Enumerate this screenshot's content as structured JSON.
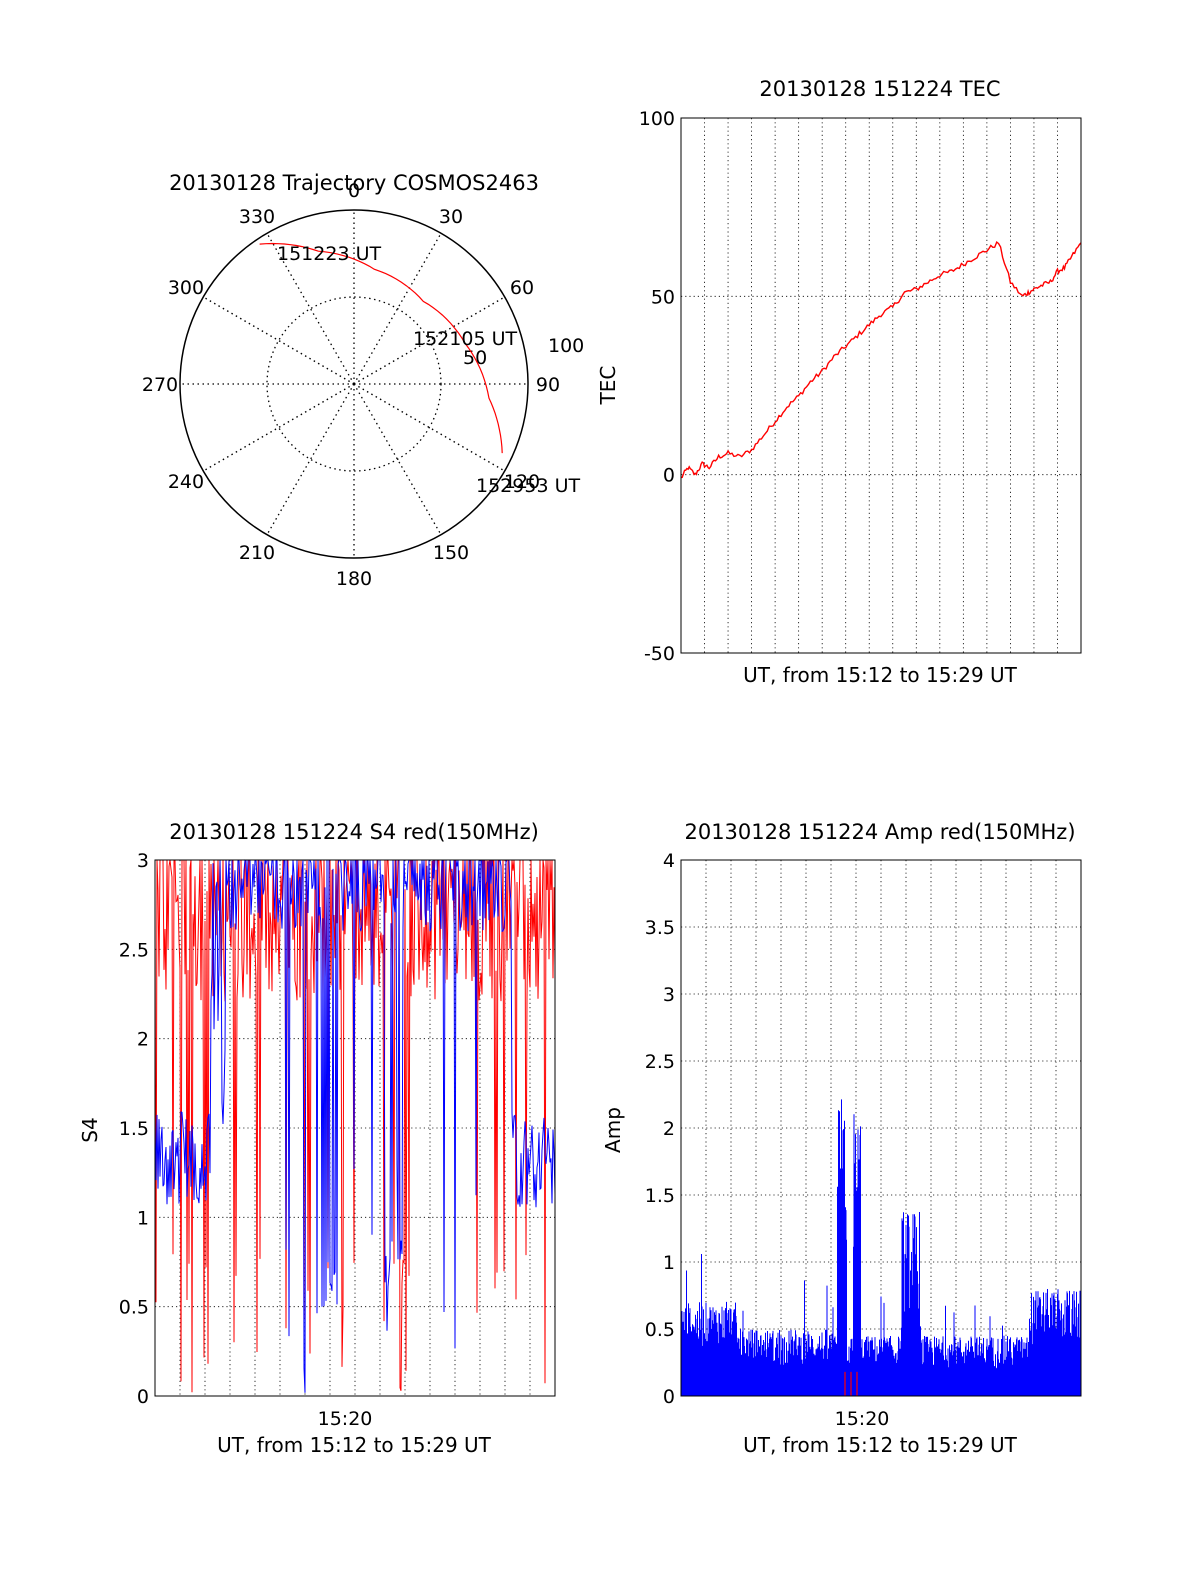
{
  "chart_data": [
    {
      "type": "polar",
      "title": "20130128 Trajectory COSMOS2463",
      "angle_labels": [
        "0",
        "30",
        "60",
        "90",
        "120",
        "150",
        "180",
        "210",
        "240",
        "270",
        "300",
        "330"
      ],
      "radial_labels": [
        "50",
        "100"
      ],
      "rlim": [
        0,
        100
      ],
      "grid": true,
      "series": [
        {
          "color": "#ff0000",
          "points": [
            {
              "azimuth": 326,
              "elevation_ring": 97
            },
            {
              "azimuth": 345,
              "elevation_ring": 79
            },
            {
              "azimuth": 10,
              "elevation_ring": 67
            },
            {
              "azimuth": 40,
              "elevation_ring": 62
            },
            {
              "azimuth": 70,
              "elevation_ring": 68
            },
            {
              "azimuth": 96,
              "elevation_ring": 78
            },
            {
              "azimuth": 115,
              "elevation_ring": 94
            }
          ]
        }
      ],
      "annotations": [
        "151223 UT",
        "152105 UT",
        "152953 UT"
      ]
    },
    {
      "type": "line",
      "title": "20130128 151224 TEC",
      "xlabel": "UT, from 15:12 to 15:29 UT",
      "ylabel": "TEC",
      "xlim": [
        0,
        17
      ],
      "ylim": [
        -50,
        100
      ],
      "yticks": [
        "-50",
        "0",
        "50",
        "100"
      ],
      "grid": true,
      "series": [
        {
          "color": "#ff0000",
          "x": [
            0,
            0.3,
            0.6,
            0.9,
            1.2,
            1.6,
            2,
            2.5,
            3,
            3.5,
            4,
            4.5,
            5,
            5.5,
            6,
            6.5,
            7,
            7.5,
            8,
            8.5,
            9,
            9.5,
            10,
            10.5,
            11,
            11.5,
            12,
            12.5,
            13,
            13.5,
            14,
            14.5,
            14.75,
            15,
            15.3,
            15.7,
            16,
            16.3,
            16.6,
            17
          ],
          "y": [
            -1,
            2,
            0,
            3,
            2,
            5,
            6,
            5,
            7,
            11,
            15,
            19,
            22,
            26,
            29,
            33,
            36,
            39,
            42,
            45,
            47,
            51,
            52,
            54,
            56,
            57,
            59,
            61,
            63,
            65,
            54,
            50,
            51,
            52,
            53,
            54,
            57,
            58,
            61,
            65
          ]
        }
      ]
    },
    {
      "type": "line",
      "title": "20130128 151224 S4 red(150MHz)",
      "xlabel": "UT, from 15:12 to 15:29 UT",
      "ylabel": "S4",
      "xlim": [
        0,
        17
      ],
      "ylim": [
        0,
        3
      ],
      "xticks": [
        {
          "value": 7.6,
          "label": "15:20"
        }
      ],
      "yticks": [
        "0",
        "0.5",
        "1",
        "1.5",
        "2",
        "2.5",
        "3"
      ],
      "grid": true,
      "series": [
        {
          "color": "#ff0000",
          "description_values": "dense spikes mostly between 2 and 3 with drops to 0"
        },
        {
          "color": "#0000ff",
          "description_values": "about 1.2-1.5 at edges, saturating at 3 in middle with dips to 0.5"
        }
      ]
    },
    {
      "type": "line",
      "title": "20130128 151224 Amp red(150MHz)",
      "xlabel": "UT, from 15:12 to 15:29 UT",
      "ylabel": "Amp",
      "xlim": [
        0,
        17
      ],
      "ylim": [
        0,
        4
      ],
      "xticks": [
        {
          "value": 6.6,
          "label": "15:20"
        }
      ],
      "yticks": [
        "0",
        "0.5",
        "1",
        "1.5",
        "2",
        "2.5",
        "3",
        "3.5",
        "4"
      ],
      "grid": true,
      "series": [
        {
          "color": "#0000ff",
          "description_values": "noise around 0.3-0.5 with peaks to 2.25 near 15:19 and 1.45 near 15:21"
        },
        {
          "color": "#ff0000",
          "description_values": "near 0 with tiny spikes near 15:19"
        }
      ]
    }
  ]
}
